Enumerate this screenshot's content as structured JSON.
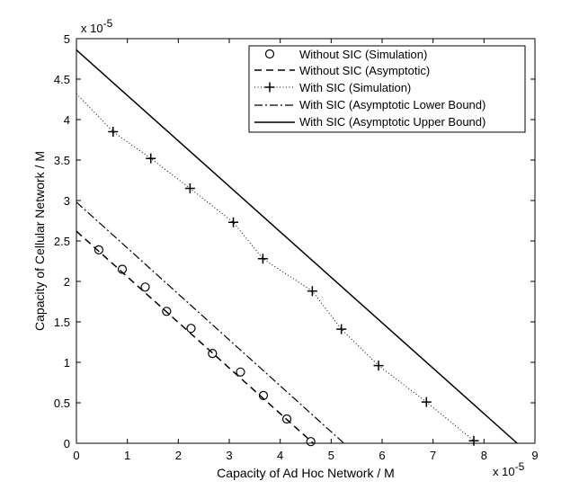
{
  "chart_data": {
    "type": "line",
    "xlabel": "Capacity of Ad Hoc Network / M",
    "ylabel": "Capacity of Cellular Network / M",
    "x_multiplier": "x 10",
    "x_exponent": "-5",
    "y_multiplier": "x 10",
    "y_exponent": "-5",
    "xlim": [
      0,
      9
    ],
    "ylim": [
      0,
      5
    ],
    "xticks": [
      "0",
      "1",
      "2",
      "3",
      "4",
      "5",
      "6",
      "7",
      "8",
      "9"
    ],
    "yticks": [
      "0",
      "0.5",
      "1",
      "1.5",
      "2",
      "2.5",
      "3",
      "3.5",
      "4",
      "4.5",
      "5"
    ],
    "grid": false,
    "legend_position": "top-right",
    "series": [
      {
        "name": "Without SIC (Simulation)",
        "style": "circle-markers",
        "color": "#000000",
        "x": [
          0.44,
          0.9,
          1.35,
          1.77,
          2.25,
          2.67,
          3.22,
          3.67,
          4.13,
          4.6
        ],
        "y": [
          2.39,
          2.15,
          1.93,
          1.63,
          1.42,
          1.11,
          0.88,
          0.59,
          0.3,
          0.02
        ]
      },
      {
        "name": "Without SIC (Asymptotic)",
        "style": "dashed",
        "color": "#000000",
        "x": [
          0,
          4.65
        ],
        "y": [
          2.62,
          0
        ]
      },
      {
        "name": "With SIC (Simulation)",
        "style": "dotted-plus",
        "color": "#000000",
        "x": [
          0,
          0.72,
          1.46,
          2.23,
          3.08,
          3.66,
          4.63,
          5.2,
          5.93,
          6.87,
          7.8
        ],
        "y": [
          4.32,
          3.85,
          3.52,
          3.15,
          2.73,
          2.28,
          1.88,
          1.41,
          0.96,
          0.51,
          0.03
        ]
      },
      {
        "name": "With SIC (Asymptotic Lower Bound)",
        "style": "dash-dot",
        "color": "#000000",
        "x": [
          0,
          5.25
        ],
        "y": [
          2.98,
          0
        ]
      },
      {
        "name": "With SIC (Asymptotic Upper Bound)",
        "style": "solid",
        "color": "#000000",
        "x": [
          0,
          8.65
        ],
        "y": [
          4.86,
          0
        ]
      }
    ]
  }
}
